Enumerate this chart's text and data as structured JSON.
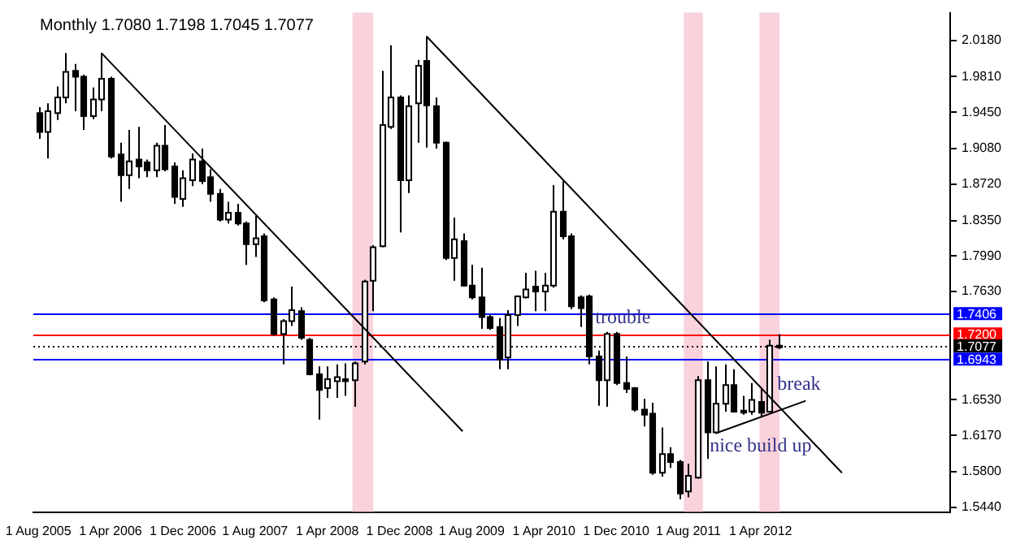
{
  "chart_data": {
    "type": "candlestick",
    "title": "Monthly 1.7080 1.7198 1.7045 1.7077",
    "x": [
      "2005-08",
      "2005-09",
      "2005-10",
      "2005-11",
      "2005-12",
      "2006-01",
      "2006-02",
      "2006-03",
      "2006-04",
      "2006-05",
      "2006-06",
      "2006-07",
      "2006-08",
      "2006-09",
      "2006-10",
      "2006-11",
      "2006-12",
      "2007-01",
      "2007-02",
      "2007-03",
      "2007-04",
      "2007-05",
      "2007-06",
      "2007-07",
      "2007-08",
      "2007-09",
      "2007-10",
      "2007-11",
      "2007-12",
      "2008-01",
      "2008-02",
      "2008-03",
      "2008-04",
      "2008-05",
      "2008-06",
      "2008-07",
      "2008-08",
      "2008-09",
      "2008-10",
      "2008-11",
      "2008-12",
      "2009-01",
      "2009-02",
      "2009-03",
      "2009-04",
      "2009-05",
      "2009-06",
      "2009-07",
      "2009-08",
      "2009-09",
      "2009-10",
      "2009-11",
      "2009-12",
      "2010-01",
      "2010-02",
      "2010-03",
      "2010-04",
      "2010-05",
      "2010-06",
      "2010-07",
      "2010-08",
      "2010-09",
      "2010-10",
      "2010-11",
      "2010-12",
      "2011-01",
      "2011-02",
      "2011-03",
      "2011-04",
      "2011-05",
      "2011-06",
      "2011-07",
      "2011-08",
      "2011-09",
      "2011-10",
      "2011-11",
      "2011-12",
      "2012-01",
      "2012-02",
      "2012-03",
      "2012-04",
      "2012-05",
      "2012-06"
    ],
    "ohlc": [
      [
        1.944,
        1.95,
        1.918,
        1.925
      ],
      [
        1.925,
        1.954,
        1.898,
        1.946
      ],
      [
        1.944,
        1.971,
        1.937,
        1.96
      ],
      [
        1.96,
        2.005,
        1.954,
        1.986
      ],
      [
        1.987,
        1.994,
        1.946,
        1.981
      ],
      [
        1.981,
        1.983,
        1.927,
        1.941
      ],
      [
        1.941,
        1.97,
        1.938,
        1.958
      ],
      [
        1.958,
        2.005,
        1.946,
        1.979
      ],
      [
        1.979,
        1.981,
        1.898,
        1.9
      ],
      [
        1.902,
        1.914,
        1.854,
        1.881
      ],
      [
        1.881,
        1.927,
        1.867,
        1.895
      ],
      [
        1.897,
        1.93,
        1.878,
        1.89
      ],
      [
        1.894,
        1.897,
        1.879,
        1.886
      ],
      [
        1.886,
        1.914,
        1.879,
        1.911
      ],
      [
        1.911,
        1.932,
        1.885,
        1.887
      ],
      [
        1.89,
        1.894,
        1.852,
        1.859
      ],
      [
        1.857,
        1.886,
        1.849,
        1.878
      ],
      [
        1.876,
        1.903,
        1.87,
        1.897
      ],
      [
        1.895,
        1.908,
        1.872,
        1.875
      ],
      [
        1.879,
        1.887,
        1.854,
        1.862
      ],
      [
        1.862,
        1.867,
        1.834,
        1.836
      ],
      [
        1.836,
        1.854,
        1.832,
        1.843
      ],
      [
        1.843,
        1.852,
        1.83,
        1.832
      ],
      [
        1.832,
        1.834,
        1.79,
        1.811
      ],
      [
        1.811,
        1.84,
        1.798,
        1.817
      ],
      [
        1.819,
        1.822,
        1.752,
        1.754
      ],
      [
        1.755,
        1.757,
        1.718,
        1.72
      ],
      [
        1.72,
        1.735,
        1.689,
        1.733
      ],
      [
        1.733,
        1.768,
        1.728,
        1.744
      ],
      [
        1.743,
        1.747,
        1.714,
        1.716
      ],
      [
        1.714,
        1.716,
        1.678,
        1.679
      ],
      [
        1.679,
        1.687,
        1.633,
        1.663
      ],
      [
        1.665,
        1.687,
        1.655,
        1.674
      ],
      [
        1.672,
        1.689,
        1.655,
        1.676
      ],
      [
        1.674,
        1.69,
        1.657,
        1.672
      ],
      [
        1.673,
        1.692,
        1.646,
        1.69
      ],
      [
        1.692,
        1.775,
        1.689,
        1.773
      ],
      [
        1.774,
        1.81,
        1.743,
        1.808
      ],
      [
        1.809,
        1.987,
        1.808,
        1.932
      ],
      [
        1.93,
        2.013,
        1.928,
        1.96
      ],
      [
        1.96,
        1.962,
        1.823,
        1.876
      ],
      [
        1.876,
        1.962,
        1.863,
        1.951
      ],
      [
        1.954,
        1.998,
        1.914,
        1.992
      ],
      [
        1.997,
        2.022,
        1.909,
        1.952
      ],
      [
        1.951,
        1.96,
        1.908,
        1.914
      ],
      [
        1.914,
        1.915,
        1.795,
        1.797
      ],
      [
        1.797,
        1.838,
        1.774,
        1.816
      ],
      [
        1.814,
        1.822,
        1.768,
        1.769
      ],
      [
        1.769,
        1.79,
        1.755,
        1.757
      ],
      [
        1.757,
        1.787,
        1.725,
        1.737
      ],
      [
        1.737,
        1.739,
        1.724,
        1.726
      ],
      [
        1.727,
        1.736,
        1.684,
        1.694
      ],
      [
        1.696,
        1.744,
        1.684,
        1.739
      ],
      [
        1.739,
        1.759,
        1.728,
        1.758
      ],
      [
        1.757,
        1.782,
        1.756,
        1.765
      ],
      [
        1.768,
        1.784,
        1.743,
        1.763
      ],
      [
        1.763,
        1.782,
        1.743,
        1.769
      ],
      [
        1.769,
        1.871,
        1.767,
        1.844
      ],
      [
        1.844,
        1.875,
        1.816,
        1.819
      ],
      [
        1.819,
        1.822,
        1.745,
        1.748
      ],
      [
        1.757,
        1.759,
        1.727,
        1.746
      ],
      [
        1.758,
        1.76,
        1.689,
        1.697
      ],
      [
        1.697,
        1.703,
        1.647,
        1.673
      ],
      [
        1.673,
        1.722,
        1.646,
        1.72
      ],
      [
        1.72,
        1.722,
        1.668,
        1.67
      ],
      [
        1.67,
        1.697,
        1.66,
        1.664
      ],
      [
        1.665,
        1.666,
        1.641,
        1.643
      ],
      [
        1.643,
        1.654,
        1.626,
        1.638
      ],
      [
        1.639,
        1.65,
        1.577,
        1.579
      ],
      [
        1.579,
        1.625,
        1.575,
        1.598
      ],
      [
        1.598,
        1.605,
        1.584,
        1.59
      ],
      [
        1.59,
        1.592,
        1.552,
        1.558
      ],
      [
        1.56,
        1.588,
        1.554,
        1.576
      ],
      [
        1.574,
        1.677,
        1.573,
        1.673
      ],
      [
        1.673,
        1.692,
        1.593,
        1.62
      ],
      [
        1.62,
        1.687,
        1.619,
        1.649
      ],
      [
        1.649,
        1.689,
        1.641,
        1.668
      ],
      [
        1.668,
        1.684,
        1.64,
        1.641
      ],
      [
        1.642,
        1.657,
        1.638,
        1.64
      ],
      [
        1.641,
        1.67,
        1.638,
        1.653
      ],
      [
        1.651,
        1.664,
        1.636,
        1.64
      ],
      [
        1.641,
        1.714,
        1.64,
        1.708
      ],
      [
        1.708,
        1.7198,
        1.7045,
        1.7077
      ]
    ],
    "series": [
      {
        "type": "line",
        "color": "#000000",
        "x": [
          "2006-03",
          "2009-07"
        ],
        "values": [
          2.005,
          1.621
        ]
      },
      {
        "type": "line",
        "color": "#000000",
        "x": [
          "2009-03",
          "2013-01"
        ],
        "values": [
          2.022,
          1.579
        ]
      },
      {
        "type": "line",
        "color": "#000000",
        "x": [
          "2011-11",
          "2012-09"
        ],
        "values": [
          1.619,
          1.652
        ]
      }
    ],
    "xlim": [
      "2005-07-15",
      "2014-01"
    ],
    "xticks": [
      {
        "value": "2005-08",
        "label": "1 Aug 2005"
      },
      {
        "value": "2006-04",
        "label": "1 Apr 2006"
      },
      {
        "value": "2006-12",
        "label": "1 Dec 2006"
      },
      {
        "value": "2007-08",
        "label": "1 Aug 2007"
      },
      {
        "value": "2008-04",
        "label": "1 Apr 2008"
      },
      {
        "value": "2008-12",
        "label": "1 Dec 2008"
      },
      {
        "value": "2009-08",
        "label": "1 Aug 2009"
      },
      {
        "value": "2010-04",
        "label": "1 Apr 2010"
      },
      {
        "value": "2010-12",
        "label": "1 Dec 2010"
      },
      {
        "value": "2011-08",
        "label": "1 Aug 2011"
      },
      {
        "value": "2012-04",
        "label": "1 Apr 2012"
      }
    ],
    "ylim": [
      1.539,
      2.046
    ],
    "yticks": [
      {
        "value": 2.018,
        "label": "2.0180"
      },
      {
        "value": 1.981,
        "label": "1.9810"
      },
      {
        "value": 1.945,
        "label": "1.9450"
      },
      {
        "value": 1.908,
        "label": "1.9080"
      },
      {
        "value": 1.872,
        "label": "1.8720"
      },
      {
        "value": 1.835,
        "label": "1.8350"
      },
      {
        "value": 1.799,
        "label": "1.7990"
      },
      {
        "value": 1.763,
        "label": "1.7630"
      },
      {
        "value": 1.653,
        "label": "1.6530"
      },
      {
        "value": 1.617,
        "label": "1.6170"
      },
      {
        "value": 1.58,
        "label": "1.5800"
      },
      {
        "value": 1.544,
        "label": "1.5440"
      }
    ],
    "ref_lines": [
      {
        "axis": "y",
        "value": 1.7406,
        "label": "1.7406",
        "color": "#0000ff"
      },
      {
        "axis": "y",
        "value": 1.72,
        "label": "1.7200",
        "color": "#ff0000"
      },
      {
        "axis": "y",
        "value": 1.6943,
        "label": "1.6943",
        "color": "#0000ff"
      },
      {
        "axis": "y",
        "value": 1.7077,
        "label": "1.7077",
        "color": "#000000",
        "line_style": "dotted"
      }
    ],
    "bands": [
      {
        "axis": "x",
        "from": "2008-06-25",
        "to": "2008-09-04",
        "color": "#f7b4c4"
      },
      {
        "axis": "x",
        "from": "2011-07-16",
        "to": "2011-09-19",
        "color": "#f7b4c4"
      },
      {
        "axis": "x",
        "from": "2012-03-28",
        "to": "2012-06-04",
        "color": "#f7b4c4"
      }
    ],
    "annotations": [
      "trouble",
      "break",
      {
        "text": "nice build up",
        "x": "2012-04",
        "y": 1.606
      }
    ],
    "grid": false,
    "legend": false
  }
}
